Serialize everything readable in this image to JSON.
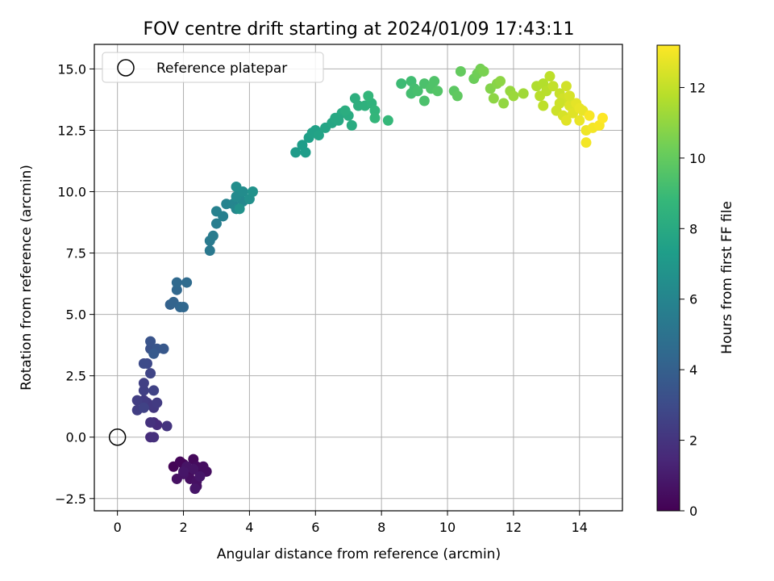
{
  "chart_data": {
    "type": "scatter",
    "title": "FOV centre drift starting at 2024/01/09 17:43:11",
    "xlabel": "Angular distance from reference (arcmin)",
    "ylabel": "Rotation from reference (arcmin)",
    "xlim": [
      -0.7,
      15.3
    ],
    "ylim": [
      -3.0,
      16.0
    ],
    "xticks": [
      0,
      2,
      4,
      6,
      8,
      10,
      12,
      14
    ],
    "yticks": [
      -2.5,
      0.0,
      2.5,
      5.0,
      7.5,
      10.0,
      12.5,
      15.0
    ],
    "xtick_labels": [
      "0",
      "2",
      "4",
      "6",
      "8",
      "10",
      "12",
      "14"
    ],
    "ytick_labels": [
      "−2.5",
      "0.0",
      "2.5",
      "5.0",
      "7.5",
      "10.0",
      "12.5",
      "15.0"
    ],
    "grid": true,
    "legend": {
      "position": "top-left",
      "entries": [
        {
          "label": "Reference platepar",
          "marker": "open-circle"
        }
      ]
    },
    "reference_point": {
      "x": 0.0,
      "y": 0.0
    },
    "colorbar": {
      "label": "Hours from first FF file",
      "range": [
        0,
        13.2
      ],
      "ticks": [
        0,
        2,
        4,
        6,
        8,
        10,
        12
      ],
      "tick_labels": [
        "0",
        "2",
        "4",
        "6",
        "8",
        "10",
        "12"
      ],
      "colormap": "viridis",
      "colormap_stops": [
        "#440154",
        "#482878",
        "#3e4a89",
        "#31688e",
        "#26828e",
        "#1f9e89",
        "#35b779",
        "#6ece58",
        "#b5de2b",
        "#fde725"
      ]
    },
    "points": [
      {
        "x": 1.7,
        "y": -1.2,
        "c": 0.1
      },
      {
        "x": 1.9,
        "y": -1.0,
        "c": 0.2
      },
      {
        "x": 2.0,
        "y": -1.1,
        "c": 0.2
      },
      {
        "x": 2.1,
        "y": -1.3,
        "c": 0.3
      },
      {
        "x": 2.2,
        "y": -1.4,
        "c": 0.3
      },
      {
        "x": 2.3,
        "y": -0.9,
        "c": 0.3
      },
      {
        "x": 2.4,
        "y": -1.2,
        "c": 0.4
      },
      {
        "x": 2.5,
        "y": -1.5,
        "c": 0.4
      },
      {
        "x": 2.6,
        "y": -1.2,
        "c": 0.5
      },
      {
        "x": 2.7,
        "y": -1.4,
        "c": 0.5
      },
      {
        "x": 2.2,
        "y": -1.7,
        "c": 0.5
      },
      {
        "x": 2.4,
        "y": -2.0,
        "c": 0.6
      },
      {
        "x": 2.4,
        "y": -1.8,
        "c": 0.6
      },
      {
        "x": 1.8,
        "y": -1.7,
        "c": 0.6
      },
      {
        "x": 2.0,
        "y": -1.5,
        "c": 0.7
      },
      {
        "x": 2.1,
        "y": -1.2,
        "c": 0.7
      },
      {
        "x": 2.3,
        "y": -1.3,
        "c": 0.7
      },
      {
        "x": 2.5,
        "y": -1.6,
        "c": 0.8
      },
      {
        "x": 2.35,
        "y": -2.1,
        "c": 0.8
      },
      {
        "x": 2.0,
        "y": -1.4,
        "c": 0.8
      },
      {
        "x": 1.1,
        "y": 0.6,
        "c": 1.6
      },
      {
        "x": 1.2,
        "y": 0.5,
        "c": 1.7
      },
      {
        "x": 1.0,
        "y": 0.0,
        "c": 1.7
      },
      {
        "x": 1.1,
        "y": 0.0,
        "c": 1.8
      },
      {
        "x": 1.0,
        "y": 0.6,
        "c": 1.9
      },
      {
        "x": 1.5,
        "y": 0.45,
        "c": 2.0
      },
      {
        "x": 1.1,
        "y": 1.2,
        "c": 2.1
      },
      {
        "x": 0.9,
        "y": 1.4,
        "c": 2.2
      },
      {
        "x": 1.1,
        "y": 1.3,
        "c": 2.2
      },
      {
        "x": 1.2,
        "y": 1.4,
        "c": 2.3
      },
      {
        "x": 0.8,
        "y": 1.5,
        "c": 2.3
      },
      {
        "x": 0.6,
        "y": 1.5,
        "c": 2.4
      },
      {
        "x": 0.6,
        "y": 1.1,
        "c": 2.4
      },
      {
        "x": 0.8,
        "y": 1.9,
        "c": 2.5
      },
      {
        "x": 0.8,
        "y": 2.2,
        "c": 2.5
      },
      {
        "x": 1.1,
        "y": 1.9,
        "c": 2.6
      },
      {
        "x": 0.8,
        "y": 1.2,
        "c": 2.6
      },
      {
        "x": 1.0,
        "y": 2.6,
        "c": 2.7
      },
      {
        "x": 0.9,
        "y": 3.0,
        "c": 2.9
      },
      {
        "x": 0.8,
        "y": 3.0,
        "c": 3.0
      },
      {
        "x": 1.0,
        "y": 3.6,
        "c": 3.3
      },
      {
        "x": 1.0,
        "y": 3.9,
        "c": 3.4
      },
      {
        "x": 1.2,
        "y": 3.6,
        "c": 3.5
      },
      {
        "x": 1.4,
        "y": 3.6,
        "c": 3.6
      },
      {
        "x": 1.1,
        "y": 3.4,
        "c": 3.7
      },
      {
        "x": 1.6,
        "y": 5.4,
        "c": 4.1
      },
      {
        "x": 1.7,
        "y": 5.5,
        "c": 4.2
      },
      {
        "x": 1.9,
        "y": 5.3,
        "c": 4.3
      },
      {
        "x": 2.0,
        "y": 5.3,
        "c": 4.4
      },
      {
        "x": 1.8,
        "y": 6.0,
        "c": 4.4
      },
      {
        "x": 1.8,
        "y": 6.3,
        "c": 4.5
      },
      {
        "x": 2.1,
        "y": 6.3,
        "c": 4.6
      },
      {
        "x": 2.8,
        "y": 7.6,
        "c": 5.3
      },
      {
        "x": 2.8,
        "y": 8.0,
        "c": 5.4
      },
      {
        "x": 2.9,
        "y": 8.2,
        "c": 5.5
      },
      {
        "x": 3.0,
        "y": 8.7,
        "c": 5.6
      },
      {
        "x": 3.2,
        "y": 9.0,
        "c": 5.7
      },
      {
        "x": 3.0,
        "y": 9.2,
        "c": 5.8
      },
      {
        "x": 3.3,
        "y": 9.5,
        "c": 5.9
      },
      {
        "x": 3.5,
        "y": 9.5,
        "c": 6.0
      },
      {
        "x": 3.6,
        "y": 9.3,
        "c": 6.1
      },
      {
        "x": 3.8,
        "y": 9.6,
        "c": 6.2
      },
      {
        "x": 3.6,
        "y": 9.8,
        "c": 6.3
      },
      {
        "x": 3.8,
        "y": 10.0,
        "c": 6.4
      },
      {
        "x": 3.6,
        "y": 10.2,
        "c": 6.5
      },
      {
        "x": 4.0,
        "y": 9.7,
        "c": 6.6
      },
      {
        "x": 4.1,
        "y": 10.0,
        "c": 6.7
      },
      {
        "x": 3.7,
        "y": 9.3,
        "c": 6.7
      },
      {
        "x": 5.4,
        "y": 11.6,
        "c": 7.2
      },
      {
        "x": 5.6,
        "y": 11.9,
        "c": 7.3
      },
      {
        "x": 5.8,
        "y": 12.2,
        "c": 7.4
      },
      {
        "x": 5.9,
        "y": 12.4,
        "c": 7.5
      },
      {
        "x": 6.0,
        "y": 12.5,
        "c": 7.5
      },
      {
        "x": 6.1,
        "y": 12.3,
        "c": 7.6
      },
      {
        "x": 6.3,
        "y": 12.6,
        "c": 7.7
      },
      {
        "x": 6.5,
        "y": 12.8,
        "c": 7.8
      },
      {
        "x": 6.6,
        "y": 13.0,
        "c": 7.9
      },
      {
        "x": 6.8,
        "y": 13.2,
        "c": 8.0
      },
      {
        "x": 7.0,
        "y": 13.1,
        "c": 8.1
      },
      {
        "x": 7.1,
        "y": 12.7,
        "c": 8.1
      },
      {
        "x": 6.9,
        "y": 13.3,
        "c": 8.2
      },
      {
        "x": 7.3,
        "y": 13.5,
        "c": 8.3
      },
      {
        "x": 7.5,
        "y": 13.5,
        "c": 8.4
      },
      {
        "x": 7.7,
        "y": 13.6,
        "c": 8.5
      },
      {
        "x": 7.8,
        "y": 13.3,
        "c": 8.6
      },
      {
        "x": 7.8,
        "y": 13.0,
        "c": 8.7
      },
      {
        "x": 8.2,
        "y": 12.9,
        "c": 8.8
      },
      {
        "x": 7.6,
        "y": 13.9,
        "c": 8.7
      },
      {
        "x": 5.7,
        "y": 11.6,
        "c": 7.3
      },
      {
        "x": 6.7,
        "y": 12.9,
        "c": 7.9
      },
      {
        "x": 7.2,
        "y": 13.8,
        "c": 8.3
      },
      {
        "x": 8.6,
        "y": 14.4,
        "c": 9.0
      },
      {
        "x": 8.9,
        "y": 14.5,
        "c": 9.1
      },
      {
        "x": 9.0,
        "y": 14.2,
        "c": 9.2
      },
      {
        "x": 8.9,
        "y": 14.0,
        "c": 9.2
      },
      {
        "x": 9.1,
        "y": 14.1,
        "c": 9.3
      },
      {
        "x": 9.3,
        "y": 13.7,
        "c": 9.4
      },
      {
        "x": 9.3,
        "y": 14.4,
        "c": 9.4
      },
      {
        "x": 9.5,
        "y": 14.2,
        "c": 9.5
      },
      {
        "x": 9.6,
        "y": 14.5,
        "c": 9.5
      },
      {
        "x": 9.7,
        "y": 14.1,
        "c": 9.6
      },
      {
        "x": 10.2,
        "y": 14.1,
        "c": 9.8
      },
      {
        "x": 10.3,
        "y": 13.9,
        "c": 9.9
      },
      {
        "x": 10.4,
        "y": 14.9,
        "c": 10.0
      },
      {
        "x": 10.8,
        "y": 14.6,
        "c": 10.2
      },
      {
        "x": 10.9,
        "y": 14.8,
        "c": 10.3
      },
      {
        "x": 11.0,
        "y": 15.0,
        "c": 10.4
      },
      {
        "x": 11.1,
        "y": 14.9,
        "c": 10.5
      },
      {
        "x": 11.3,
        "y": 14.2,
        "c": 10.7
      },
      {
        "x": 11.5,
        "y": 14.4,
        "c": 10.8
      },
      {
        "x": 11.6,
        "y": 14.5,
        "c": 10.9
      },
      {
        "x": 11.4,
        "y": 13.8,
        "c": 10.9
      },
      {
        "x": 11.7,
        "y": 13.6,
        "c": 11.0
      },
      {
        "x": 11.9,
        "y": 14.1,
        "c": 11.1
      },
      {
        "x": 12.0,
        "y": 13.9,
        "c": 11.2
      },
      {
        "x": 12.3,
        "y": 14.0,
        "c": 11.3
      },
      {
        "x": 12.7,
        "y": 14.3,
        "c": 11.6
      },
      {
        "x": 12.9,
        "y": 14.4,
        "c": 11.7
      },
      {
        "x": 13.0,
        "y": 14.1,
        "c": 11.8
      },
      {
        "x": 13.1,
        "y": 14.7,
        "c": 11.9
      },
      {
        "x": 12.8,
        "y": 13.9,
        "c": 11.8
      },
      {
        "x": 12.9,
        "y": 13.5,
        "c": 11.9
      },
      {
        "x": 13.2,
        "y": 14.3,
        "c": 12.0
      },
      {
        "x": 13.4,
        "y": 14.0,
        "c": 12.1
      },
      {
        "x": 13.3,
        "y": 13.3,
        "c": 12.2
      },
      {
        "x": 13.5,
        "y": 13.8,
        "c": 12.3
      },
      {
        "x": 13.6,
        "y": 14.3,
        "c": 12.3
      },
      {
        "x": 13.5,
        "y": 13.1,
        "c": 12.4
      },
      {
        "x": 13.7,
        "y": 13.5,
        "c": 12.5
      },
      {
        "x": 13.8,
        "y": 13.2,
        "c": 12.6
      },
      {
        "x": 13.6,
        "y": 12.9,
        "c": 12.6
      },
      {
        "x": 13.9,
        "y": 13.6,
        "c": 12.7
      },
      {
        "x": 14.0,
        "y": 12.9,
        "c": 12.8
      },
      {
        "x": 14.1,
        "y": 13.3,
        "c": 12.8
      },
      {
        "x": 14.2,
        "y": 12.5,
        "c": 12.9
      },
      {
        "x": 14.2,
        "y": 12.0,
        "c": 13.0
      },
      {
        "x": 14.4,
        "y": 12.6,
        "c": 13.0
      },
      {
        "x": 14.6,
        "y": 12.7,
        "c": 13.1
      },
      {
        "x": 14.7,
        "y": 13.0,
        "c": 13.2
      },
      {
        "x": 14.3,
        "y": 13.1,
        "c": 13.1
      },
      {
        "x": 13.4,
        "y": 13.6,
        "c": 12.2
      },
      {
        "x": 13.7,
        "y": 13.9,
        "c": 12.4
      },
      {
        "x": 14.0,
        "y": 13.4,
        "c": 12.8
      }
    ]
  }
}
